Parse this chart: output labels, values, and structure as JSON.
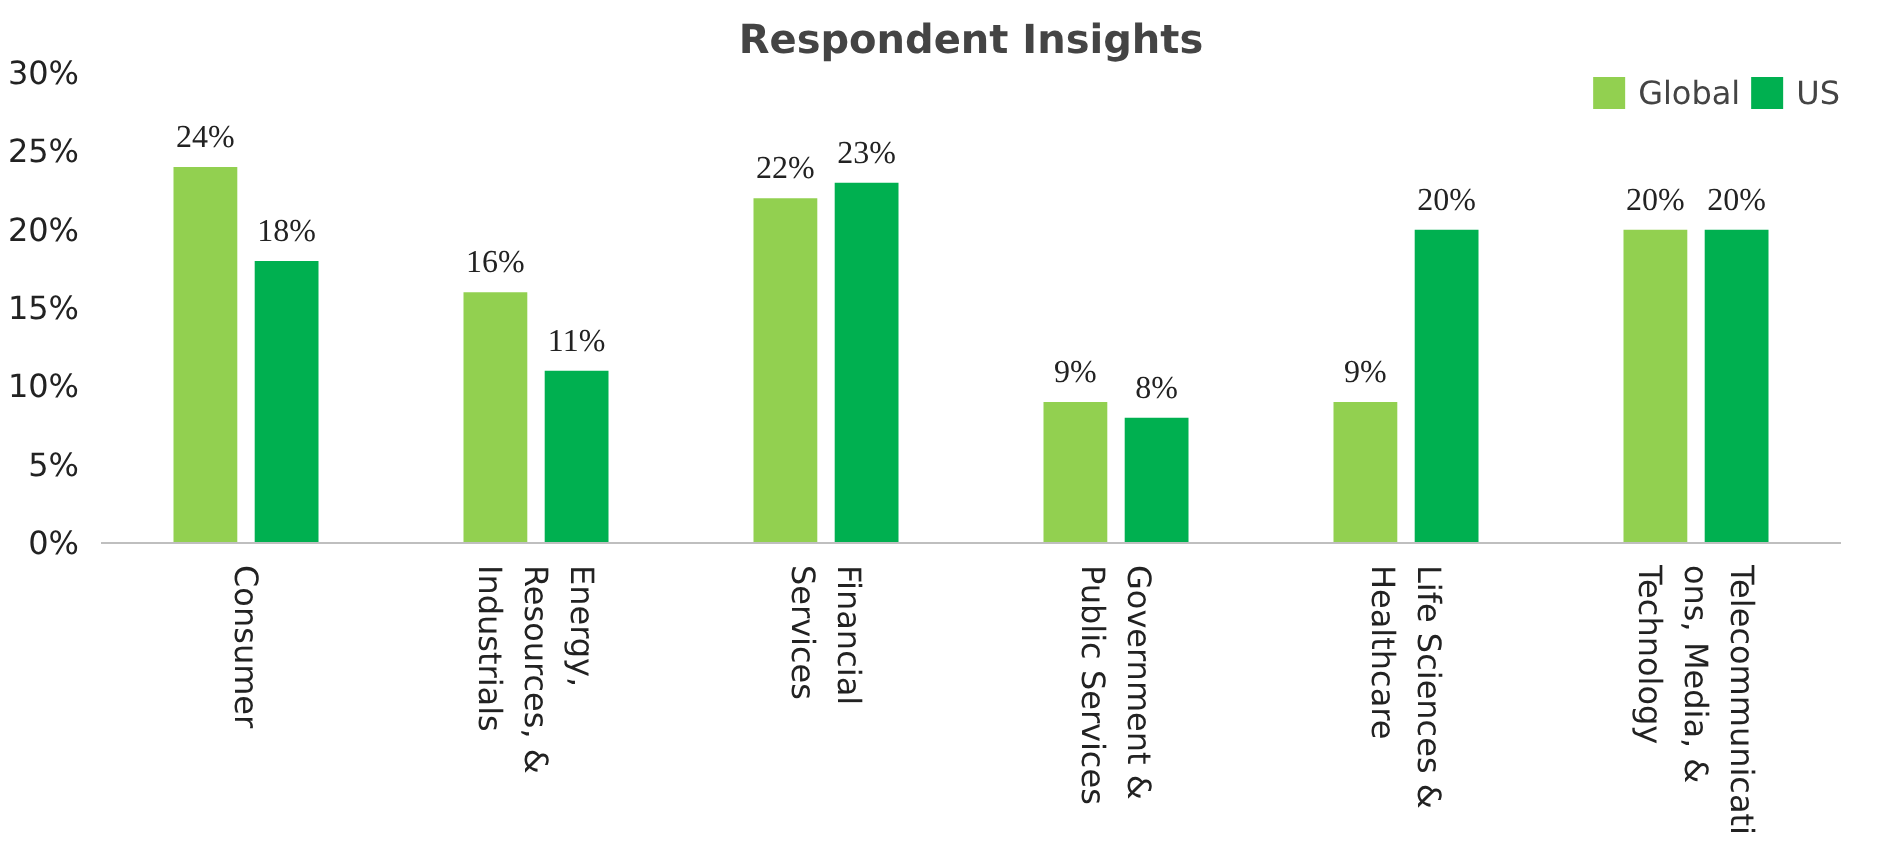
{
  "chart_data": {
    "type": "bar",
    "title": "Respondent Insights",
    "categories": [
      "Consumer",
      "Energy, Resources, & Industrials",
      "Financial Services",
      "Government & Public Services",
      "Life Sciences & Healthcare",
      "Telecommunications, Media, & Technology"
    ],
    "series": [
      {
        "name": "Global",
        "color": "#92d050",
        "values": [
          24,
          16,
          22,
          9,
          9,
          20
        ],
        "value_labels": [
          "24%",
          "16%",
          "22%",
          "9%",
          "9%",
          "20%"
        ]
      },
      {
        "name": "US",
        "color": "#00b050",
        "values": [
          18,
          11,
          23,
          8,
          20,
          20
        ],
        "value_labels": [
          "18%",
          "11%",
          "23%",
          "8%",
          "20%",
          "20%"
        ]
      }
    ],
    "ylim": [
      0,
      30
    ],
    "yticks": [
      {
        "value": 0,
        "label": "0%"
      },
      {
        "value": 5,
        "label": "5%"
      },
      {
        "value": 10,
        "label": "10%"
      },
      {
        "value": 15,
        "label": "15%"
      },
      {
        "value": 20,
        "label": "20%"
      },
      {
        "value": 25,
        "label": "25%"
      },
      {
        "value": 30,
        "label": "30%"
      }
    ],
    "grid": false,
    "legend": "top right"
  }
}
